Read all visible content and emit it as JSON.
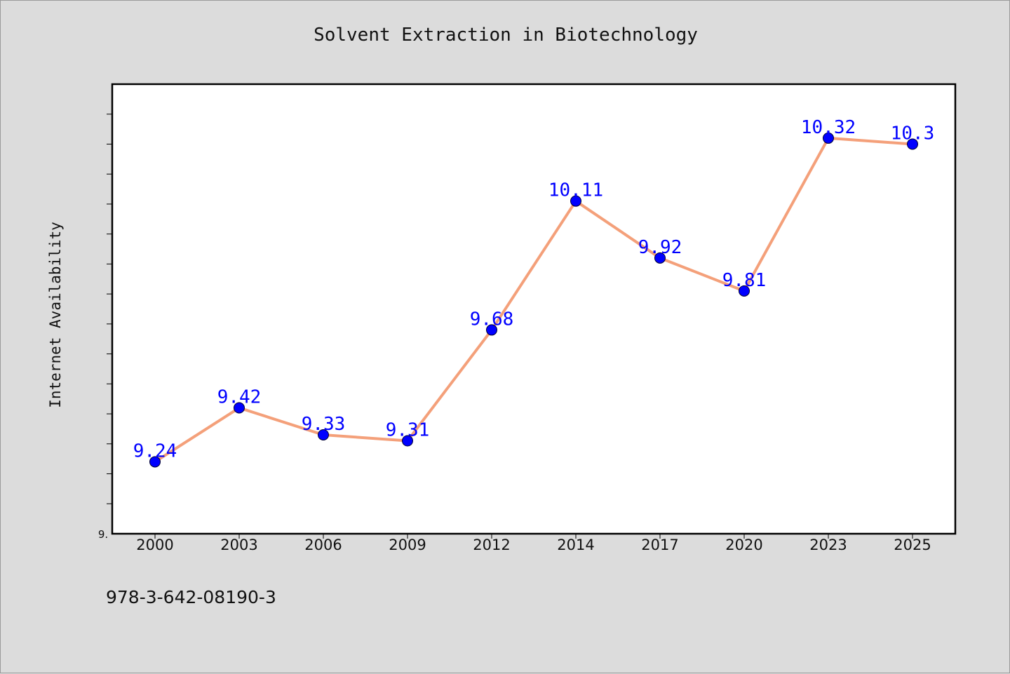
{
  "chart_data": {
    "type": "line",
    "title": "Solvent Extraction in Biotechnology",
    "xlabel": "",
    "ylabel": "Internet Availability",
    "categories": [
      "2000",
      "2003",
      "2006",
      "2009",
      "2012",
      "2014",
      "2017",
      "2020",
      "2023",
      "2025"
    ],
    "series": [
      {
        "values": [
          9.24,
          9.42,
          9.33,
          9.31,
          9.68,
          10.11,
          9.92,
          9.81,
          10.32,
          10.3
        ],
        "data_labels": [
          "9.24",
          "9.42",
          "9.33",
          "9.31",
          "9.68",
          "10.11",
          "9.92",
          "9.81",
          "10.32",
          "10.3"
        ]
      }
    ],
    "ylim": [
      9.0,
      10.5
    ],
    "y_tick_label": "9.",
    "grid": false,
    "legend": "none",
    "colors": {
      "line": "#f4a07a",
      "marker": "#0000ff",
      "data_label": "#0000ff",
      "plot_background": "#ffffff",
      "page_background": "#dcdcdc"
    }
  },
  "footer": {
    "isbn": "978-3-642-08190-3"
  }
}
